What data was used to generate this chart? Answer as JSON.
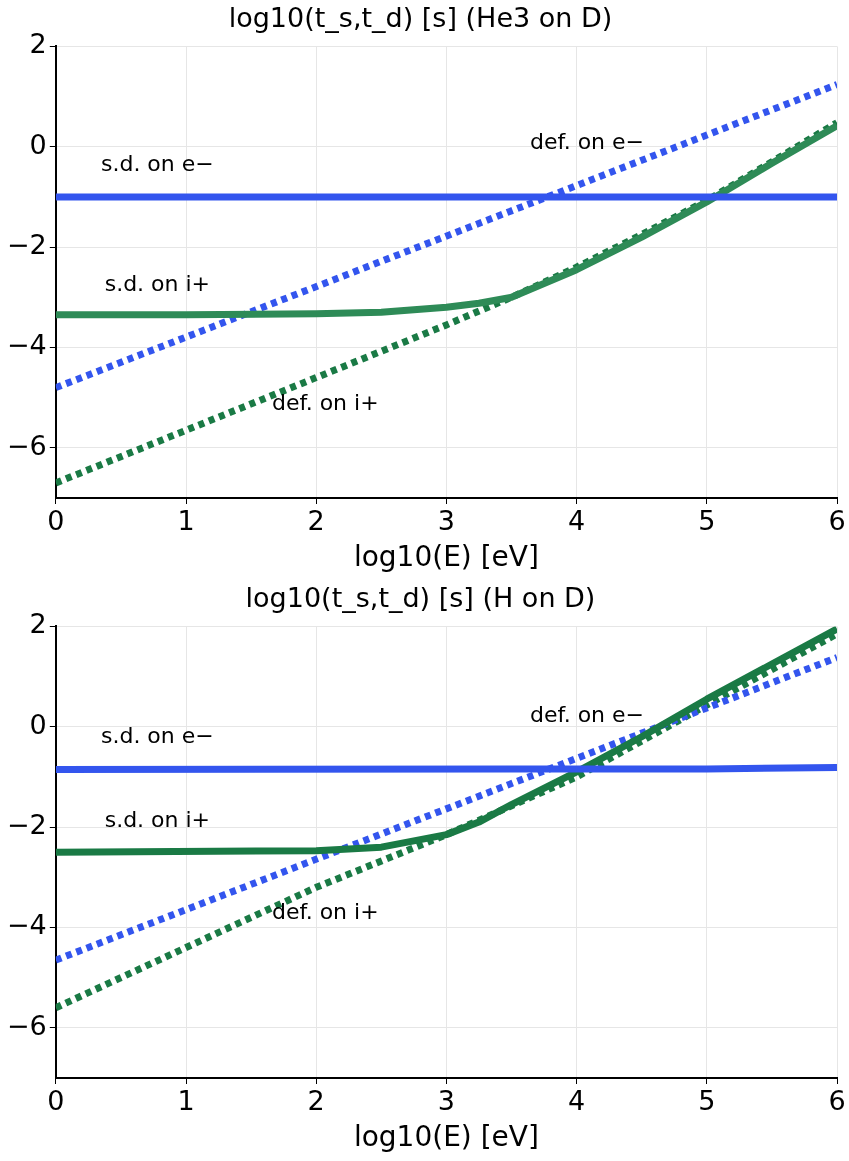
{
  "chart_data": [
    {
      "type": "line",
      "title": "log10(t_s,t_d) [s] (He3 on D)",
      "xlabel": "log10(E) [eV]",
      "xlim": [
        0,
        6
      ],
      "xticks": [
        0,
        1,
        2,
        3,
        4,
        5,
        6
      ],
      "ylim": [
        -7,
        2
      ],
      "yticks": [
        -6,
        -4,
        -2,
        0,
        2
      ],
      "grid": true,
      "legend": false,
      "marker": "none",
      "series": [
        {
          "name": "s.d. on e−",
          "color": "#3355ee",
          "line_style": "solid",
          "x": [
            0,
            6
          ],
          "values": [
            -1.0,
            -1.0
          ]
        },
        {
          "name": "s.d. on i+",
          "color": "#2e8b57",
          "line_style": "solid",
          "x": [
            0,
            1,
            2,
            2.5,
            3,
            3.25,
            3.5,
            4,
            4.5,
            5,
            5.5,
            6
          ],
          "values": [
            -3.35,
            -3.35,
            -3.33,
            -3.3,
            -3.2,
            -3.12,
            -3.0,
            -2.45,
            -1.8,
            -1.1,
            -0.33,
            0.42
          ]
        },
        {
          "name": "def. on e−",
          "color": "#3355ee",
          "line_style": "dotted",
          "x": [
            0,
            6
          ],
          "values": [
            -4.8,
            1.24
          ]
        },
        {
          "name": "def. on i+",
          "color": "#1a7a45",
          "line_style": "dotted",
          "x": [
            0,
            1,
            2,
            3,
            3.5,
            4,
            4.5,
            5,
            5.5,
            6
          ],
          "values": [
            -6.7,
            -5.65,
            -4.6,
            -3.55,
            -3.0,
            -2.4,
            -1.75,
            -1.07,
            -0.3,
            0.48
          ]
        }
      ]
    },
    {
      "type": "line",
      "title": "log10(t_s,t_d) [s] (H on D)",
      "xlabel": "log10(E) [eV]",
      "xlim": [
        0,
        6
      ],
      "xticks": [
        0,
        1,
        2,
        3,
        4,
        5,
        6
      ],
      "ylim": [
        -7,
        2
      ],
      "yticks": [
        -6,
        -4,
        -2,
        0,
        2
      ],
      "grid": true,
      "legend": false,
      "marker": "none",
      "series": [
        {
          "name": "s.d. on e−",
          "color": "#3355ee",
          "line_style": "solid",
          "x": [
            0,
            5,
            6
          ],
          "values": [
            -0.85,
            -0.84,
            -0.81
          ]
        },
        {
          "name": "s.d. on i+",
          "color": "#1a7a45",
          "line_style": "solid",
          "x": [
            0,
            2,
            2.5,
            3,
            3.25,
            3.5,
            4,
            4.5,
            5,
            5.5,
            6
          ],
          "values": [
            -2.5,
            -2.47,
            -2.4,
            -2.15,
            -1.9,
            -1.55,
            -0.9,
            -0.2,
            0.55,
            1.25,
            1.95
          ]
        },
        {
          "name": "def. on e−",
          "color": "#3355ee",
          "line_style": "dotted",
          "x": [
            0,
            6
          ],
          "values": [
            -4.65,
            1.38
          ]
        },
        {
          "name": "def. on i+",
          "color": "#1a7a45",
          "line_style": "dotted",
          "x": [
            0,
            1,
            2,
            3,
            4,
            5,
            6
          ],
          "values": [
            -5.6,
            -4.4,
            -3.2,
            -2.15,
            -1.0,
            0.43,
            1.85
          ]
        }
      ]
    }
  ]
}
